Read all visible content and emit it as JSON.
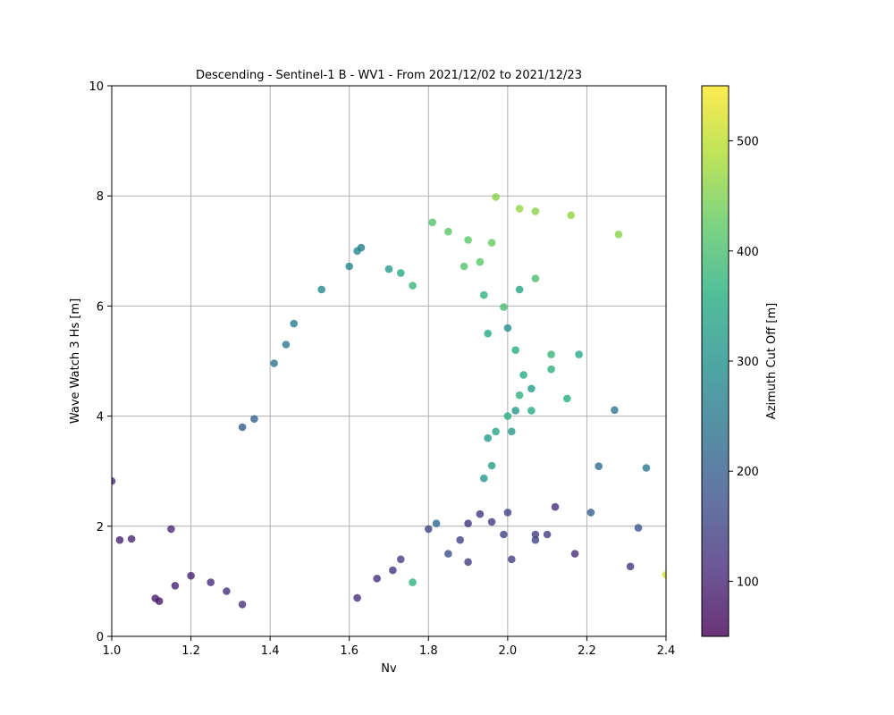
{
  "chart_data": {
    "type": "scatter",
    "title": "Descending - Sentinel-1 B - WV1 - From 2021/12/02 to 2021/12/23",
    "xlabel": "Nv",
    "ylabel": "Wave Watch 3 Hs [m]",
    "xlim": [
      1.0,
      2.4
    ],
    "ylim": [
      0,
      10
    ],
    "xticks": [
      "1.0",
      "1.2",
      "1.4",
      "1.6",
      "1.8",
      "2.0",
      "2.2",
      "2.4"
    ],
    "yticks": [
      "0",
      "2",
      "4",
      "6",
      "8",
      "10"
    ],
    "grid": true,
    "colorbar": {
      "label": "Azimuth Cut Off [m]",
      "colormap": "viridis",
      "range": [
        50,
        550
      ],
      "ticks": [
        "100",
        "200",
        "300",
        "400",
        "500"
      ]
    },
    "points": [
      [
        1.0,
        2.82,
        110
      ],
      [
        1.02,
        1.75,
        95
      ],
      [
        1.05,
        1.77,
        105
      ],
      [
        1.11,
        0.69,
        90
      ],
      [
        1.12,
        0.64,
        85
      ],
      [
        1.15,
        1.95,
        110
      ],
      [
        1.16,
        0.92,
        100
      ],
      [
        1.2,
        1.1,
        95
      ],
      [
        1.25,
        0.98,
        110
      ],
      [
        1.29,
        0.82,
        120
      ],
      [
        1.33,
        0.58,
        120
      ],
      [
        1.33,
        3.8,
        200
      ],
      [
        1.36,
        3.95,
        210
      ],
      [
        1.41,
        4.96,
        240
      ],
      [
        1.44,
        5.3,
        250
      ],
      [
        1.46,
        5.68,
        260
      ],
      [
        1.53,
        6.3,
        280
      ],
      [
        1.6,
        6.72,
        280
      ],
      [
        1.62,
        7.0,
        275
      ],
      [
        1.63,
        7.06,
        270
      ],
      [
        1.7,
        6.67,
        320
      ],
      [
        1.73,
        6.6,
        350
      ],
      [
        1.76,
        6.37,
        380
      ],
      [
        1.81,
        7.52,
        410
      ],
      [
        1.85,
        7.35,
        420
      ],
      [
        1.9,
        7.2,
        420
      ],
      [
        1.96,
        7.15,
        430
      ],
      [
        1.97,
        7.98,
        460
      ],
      [
        2.03,
        7.77,
        470
      ],
      [
        2.07,
        7.72,
        460
      ],
      [
        2.16,
        7.65,
        470
      ],
      [
        2.28,
        7.3,
        460
      ],
      [
        1.89,
        6.72,
        410
      ],
      [
        1.93,
        6.8,
        420
      ],
      [
        2.07,
        6.5,
        400
      ],
      [
        2.03,
        6.3,
        340
      ],
      [
        1.94,
        6.2,
        370
      ],
      [
        1.99,
        5.98,
        400
      ],
      [
        1.95,
        5.5,
        350
      ],
      [
        2.0,
        5.6,
        300
      ],
      [
        2.02,
        5.2,
        360
      ],
      [
        2.11,
        5.12,
        380
      ],
      [
        2.18,
        5.12,
        350
      ],
      [
        2.11,
        4.85,
        370
      ],
      [
        2.04,
        4.75,
        350
      ],
      [
        2.03,
        4.38,
        370
      ],
      [
        2.06,
        4.5,
        330
      ],
      [
        2.15,
        4.32,
        360
      ],
      [
        2.06,
        4.1,
        350
      ],
      [
        2.02,
        4.1,
        310
      ],
      [
        2.27,
        4.11,
        250
      ],
      [
        2.0,
        4.0,
        360
      ],
      [
        2.01,
        3.72,
        320
      ],
      [
        1.97,
        3.72,
        340
      ],
      [
        1.95,
        3.6,
        320
      ],
      [
        2.23,
        3.09,
        230
      ],
      [
        2.35,
        3.06,
        250
      ],
      [
        1.96,
        3.1,
        330
      ],
      [
        1.94,
        2.87,
        320
      ],
      [
        2.0,
        2.25,
        150
      ],
      [
        1.9,
        2.05,
        130
      ],
      [
        1.93,
        2.22,
        130
      ],
      [
        1.96,
        2.08,
        140
      ],
      [
        1.88,
        1.75,
        150
      ],
      [
        1.85,
        1.5,
        170
      ],
      [
        1.9,
        1.35,
        140
      ],
      [
        1.99,
        1.85,
        150
      ],
      [
        2.01,
        1.4,
        140
      ],
      [
        2.07,
        1.85,
        140
      ],
      [
        2.07,
        1.75,
        150
      ],
      [
        2.1,
        1.85,
        140
      ],
      [
        2.12,
        2.35,
        120
      ],
      [
        2.17,
        1.5,
        120
      ],
      [
        2.21,
        2.25,
        200
      ],
      [
        2.31,
        1.27,
        130
      ],
      [
        2.33,
        1.97,
        180
      ],
      [
        2.4,
        1.12,
        520
      ],
      [
        1.76,
        0.98,
        370
      ],
      [
        1.73,
        1.4,
        140
      ],
      [
        1.71,
        1.2,
        130
      ],
      [
        1.67,
        1.05,
        120
      ],
      [
        1.62,
        0.7,
        120
      ],
      [
        1.8,
        1.95,
        150
      ],
      [
        1.82,
        2.05,
        220
      ]
    ]
  }
}
